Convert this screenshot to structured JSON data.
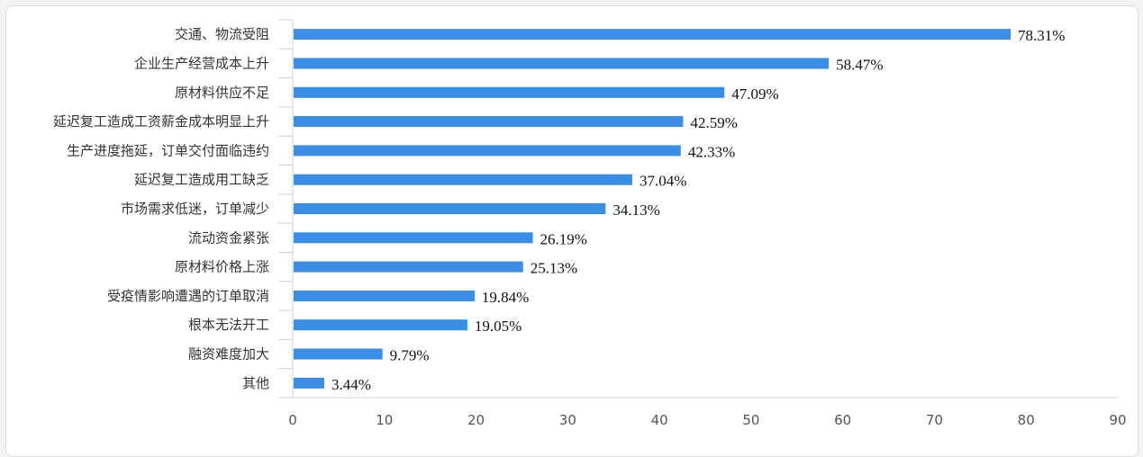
{
  "chart_data": {
    "type": "bar",
    "orientation": "horizontal",
    "categories": [
      "交通、物流受阻",
      "企业生产经营成本上升",
      "原材料供应不足",
      "延迟复工造成工资薪金成本明显上升",
      "生产进度拖延，订单交付面临违约",
      "延迟复工造成用工缺乏",
      "市场需求低迷，订单减少",
      "流动资金紧张",
      "原材料价格上涨",
      "受疫情影响遭遇的订单取消",
      "根本无法开工",
      "融资难度加大",
      "其他"
    ],
    "values": [
      78.31,
      58.47,
      47.09,
      42.59,
      42.33,
      37.04,
      34.13,
      26.19,
      25.13,
      19.84,
      19.05,
      9.79,
      3.44
    ],
    "data_labels": [
      "78.31%",
      "58.47%",
      "47.09%",
      "42.59%",
      "42.33%",
      "37.04%",
      "34.13%",
      "26.19%",
      "25.13%",
      "19.84%",
      "19.05%",
      "9.79%",
      "3.44%"
    ],
    "xlim": [
      0,
      90
    ],
    "xticks": [
      "0",
      "10",
      "20",
      "30",
      "40",
      "50",
      "60",
      "70",
      "80",
      "90"
    ],
    "grid": false,
    "bar_color": "#3a8ee6",
    "axis_color": "#c7d3df"
  }
}
